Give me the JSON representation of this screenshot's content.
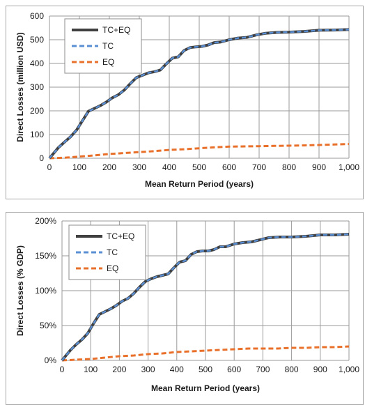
{
  "chart_data": [
    {
      "type": "line",
      "xlabel": "Mean Return Period (years)",
      "ylabel": "Direct Losses (million USD)",
      "xlim": [
        0,
        1000
      ],
      "ylim": [
        0,
        600
      ],
      "x_ticks": [
        0,
        100,
        200,
        300,
        400,
        500,
        600,
        700,
        800,
        900,
        1000
      ],
      "x_tick_labels": [
        "0",
        "100",
        "200",
        "300",
        "400",
        "500",
        "600",
        "700",
        "800",
        "900",
        "1,000"
      ],
      "y_ticks": [
        0,
        100,
        200,
        300,
        400,
        500,
        600
      ],
      "y_tick_labels": [
        "0",
        "100",
        "200",
        "300",
        "400",
        "500",
        "600"
      ],
      "grid": true,
      "legend_position": "top-left",
      "series": [
        {
          "name": "TC+EQ",
          "color": "#404040",
          "style": "solid",
          "x": [
            0,
            10,
            30,
            50,
            70,
            90,
            110,
            130,
            150,
            170,
            190,
            210,
            230,
            250,
            270,
            290,
            310,
            330,
            350,
            370,
            390,
            410,
            430,
            450,
            470,
            490,
            510,
            530,
            550,
            570,
            600,
            630,
            660,
            690,
            720,
            760,
            800,
            850,
            900,
            950,
            1000
          ],
          "y": [
            0,
            15,
            45,
            68,
            90,
            118,
            158,
            198,
            210,
            222,
            237,
            255,
            268,
            288,
            315,
            340,
            350,
            360,
            365,
            372,
            398,
            422,
            428,
            455,
            467,
            470,
            472,
            478,
            488,
            490,
            500,
            507,
            510,
            520,
            527,
            531,
            532,
            535,
            540,
            541,
            543
          ]
        },
        {
          "name": "TC",
          "color": "#5b8fd3",
          "style": "dashed",
          "x": [
            0,
            10,
            30,
            50,
            70,
            90,
            110,
            130,
            150,
            170,
            190,
            210,
            230,
            250,
            270,
            290,
            310,
            330,
            350,
            370,
            390,
            410,
            430,
            450,
            470,
            490,
            510,
            530,
            550,
            570,
            600,
            630,
            660,
            690,
            720,
            760,
            800,
            850,
            900,
            950,
            1000
          ],
          "y": [
            0,
            15,
            45,
            68,
            90,
            118,
            158,
            198,
            210,
            222,
            237,
            255,
            268,
            288,
            315,
            340,
            350,
            360,
            365,
            372,
            398,
            422,
            428,
            455,
            467,
            470,
            472,
            478,
            488,
            490,
            500,
            507,
            510,
            520,
            527,
            531,
            532,
            535,
            540,
            541,
            543
          ]
        },
        {
          "name": "EQ",
          "color": "#e8702a",
          "style": "dashed",
          "x": [
            0,
            50,
            100,
            150,
            200,
            250,
            300,
            350,
            400,
            450,
            500,
            550,
            600,
            650,
            700,
            750,
            800,
            850,
            900,
            950,
            1000
          ],
          "y": [
            0,
            2,
            7,
            12,
            18,
            22,
            26,
            30,
            35,
            38,
            42,
            46,
            49,
            50,
            51,
            52,
            53,
            54,
            56,
            58,
            60
          ]
        }
      ]
    },
    {
      "type": "line",
      "xlabel": "Mean Return Period (years)",
      "ylabel": "Direct Losses (% GDP)",
      "xlim": [
        0,
        1000
      ],
      "ylim": [
        0,
        200
      ],
      "x_ticks": [
        0,
        100,
        200,
        300,
        400,
        500,
        600,
        700,
        800,
        900,
        1000
      ],
      "x_tick_labels": [
        "0",
        "100",
        "200",
        "300",
        "400",
        "500",
        "600",
        "700",
        "800",
        "900",
        "1,000"
      ],
      "y_ticks": [
        0,
        50,
        100,
        150,
        200
      ],
      "y_tick_labels": [
        "0%",
        "50%",
        "100%",
        "150%",
        "200%"
      ],
      "grid": true,
      "legend_position": "top-left",
      "series": [
        {
          "name": "TC+EQ",
          "color": "#404040",
          "style": "solid",
          "x": [
            0,
            10,
            30,
            50,
            70,
            90,
            110,
            130,
            150,
            170,
            190,
            210,
            230,
            250,
            270,
            290,
            310,
            330,
            350,
            370,
            390,
            410,
            430,
            450,
            470,
            490,
            510,
            530,
            550,
            570,
            600,
            630,
            660,
            690,
            720,
            760,
            800,
            850,
            900,
            950,
            1000
          ],
          "y": [
            0,
            5,
            15,
            23,
            30,
            39,
            53,
            66,
            70,
            74,
            79,
            85,
            89,
            96,
            105,
            113,
            117,
            120,
            122,
            124,
            133,
            141,
            143,
            152,
            156,
            157,
            157,
            159,
            163,
            163,
            167,
            169,
            170,
            173,
            176,
            177,
            177,
            178,
            180,
            180,
            181
          ]
        },
        {
          "name": "TC",
          "color": "#5b8fd3",
          "style": "dashed",
          "x": [
            0,
            10,
            30,
            50,
            70,
            90,
            110,
            130,
            150,
            170,
            190,
            210,
            230,
            250,
            270,
            290,
            310,
            330,
            350,
            370,
            390,
            410,
            430,
            450,
            470,
            490,
            510,
            530,
            550,
            570,
            600,
            630,
            660,
            690,
            720,
            760,
            800,
            850,
            900,
            950,
            1000
          ],
          "y": [
            0,
            5,
            15,
            23,
            30,
            39,
            53,
            66,
            70,
            74,
            79,
            85,
            89,
            96,
            105,
            113,
            117,
            120,
            122,
            124,
            133,
            141,
            143,
            152,
            156,
            157,
            157,
            159,
            163,
            163,
            167,
            169,
            170,
            173,
            176,
            177,
            177,
            178,
            180,
            180,
            181
          ]
        },
        {
          "name": "EQ",
          "color": "#e8702a",
          "style": "dashed",
          "x": [
            0,
            50,
            100,
            150,
            200,
            250,
            300,
            350,
            400,
            450,
            500,
            550,
            600,
            650,
            700,
            750,
            800,
            850,
            900,
            950,
            1000
          ],
          "y": [
            0,
            1,
            2,
            4,
            6,
            7,
            9,
            10,
            12,
            13,
            14,
            15,
            16,
            17,
            17,
            17,
            18,
            18,
            19,
            19,
            20
          ]
        }
      ]
    }
  ]
}
